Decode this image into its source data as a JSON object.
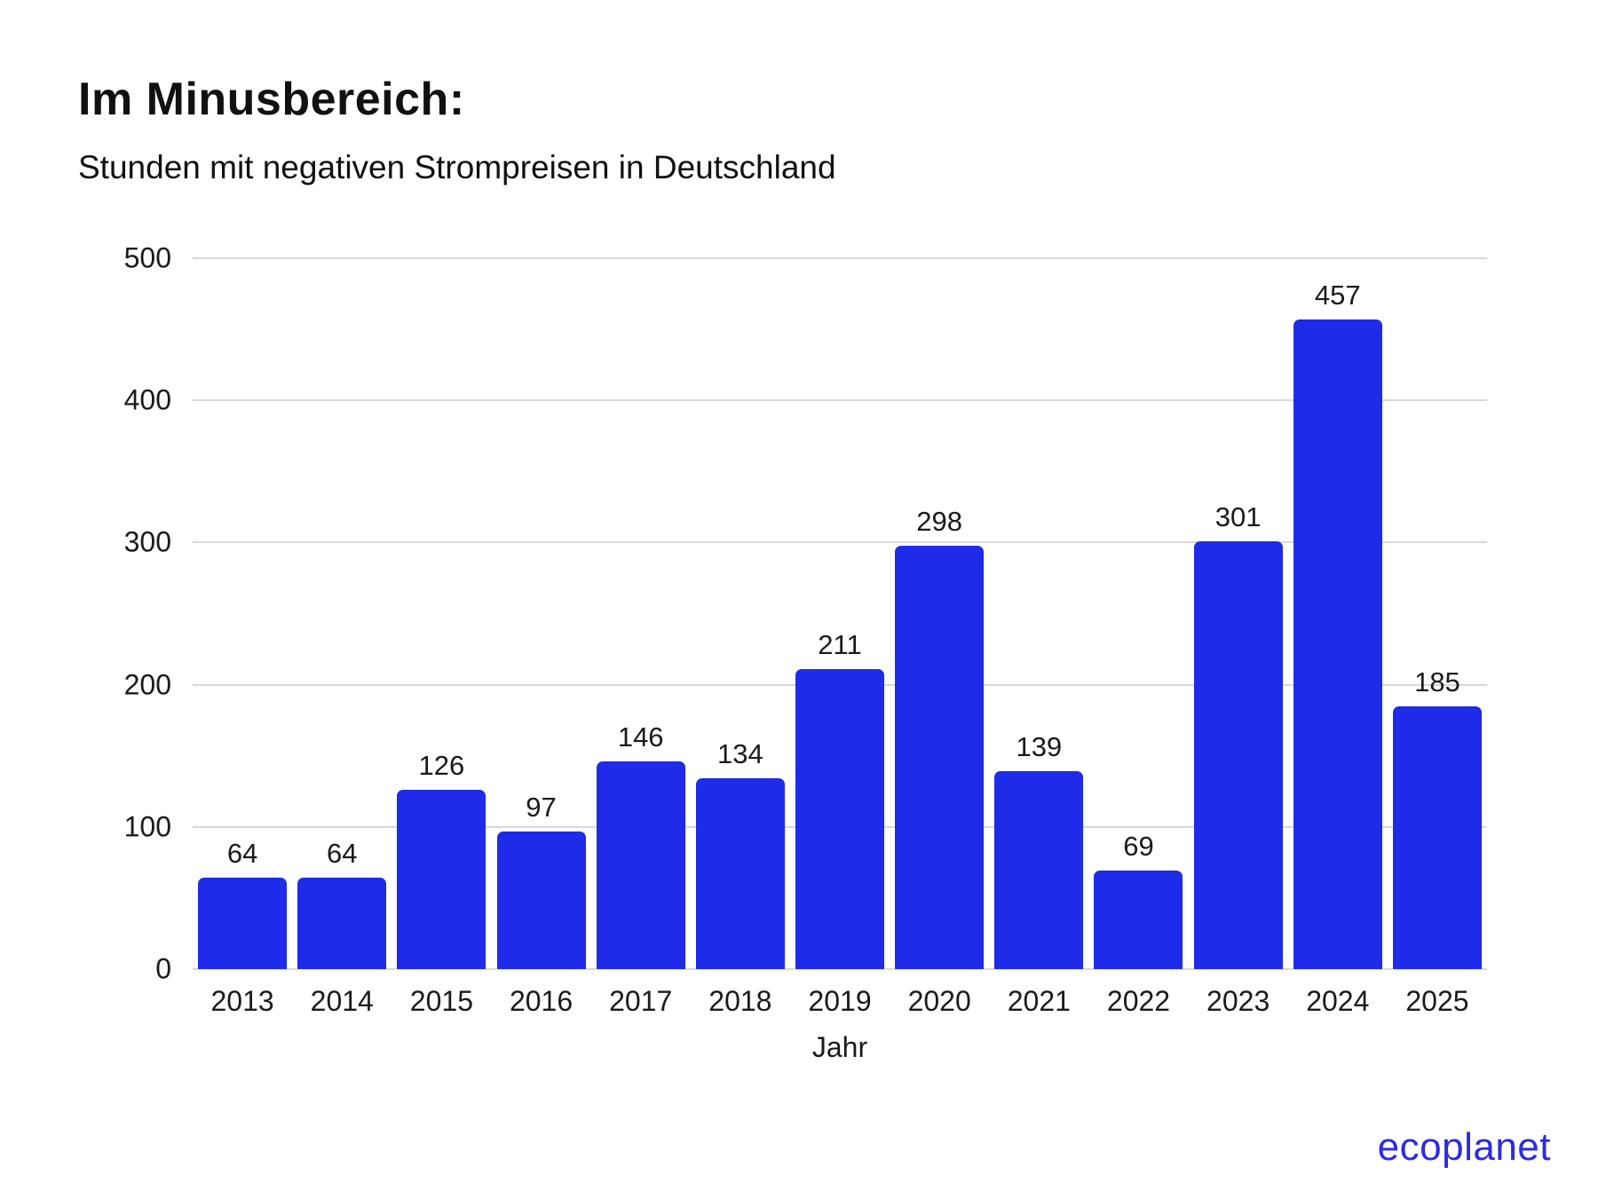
{
  "header": {
    "title": "Im Minusbereich:",
    "subtitle": "Stunden mit negativen Strompreisen in Deutschland"
  },
  "chart_data": {
    "type": "bar",
    "title": "Im Minusbereich:",
    "subtitle": "Stunden mit negativen Strompreisen in Deutschland",
    "categories": [
      "2013",
      "2014",
      "2015",
      "2016",
      "2017",
      "2018",
      "2019",
      "2020",
      "2021",
      "2022",
      "2023",
      "2024",
      "2025"
    ],
    "values": [
      64,
      64,
      126,
      97,
      146,
      134,
      211,
      298,
      139,
      69,
      301,
      457,
      185
    ],
    "xlabel": "Jahr",
    "ylabel": "",
    "ylim": [
      0,
      500
    ],
    "yticks": [
      0,
      100,
      200,
      300,
      400,
      500
    ],
    "grid": true,
    "legend": "none",
    "bar_color": "#1e2be8",
    "gridline_color": "#d8d8d8",
    "text_color": "#1a1a1a"
  },
  "footer": {
    "logo_text": "ecoplanet",
    "logo_color": "#2b2be2"
  }
}
